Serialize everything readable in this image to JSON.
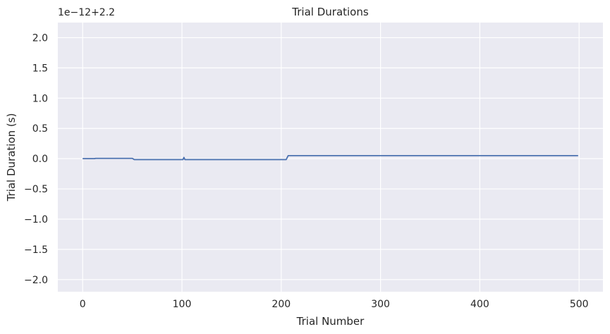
{
  "chart_data": {
    "type": "line",
    "title": "Trial Durations",
    "xlabel": "Trial Number",
    "ylabel": "Trial Duration (s)",
    "offset_label": "1e−12+2.2",
    "xlim": [
      -25,
      524
    ],
    "ylim": [
      -2.2,
      2.25
    ],
    "grid": true,
    "x_ticks": [
      0,
      100,
      200,
      300,
      400,
      500
    ],
    "y_ticks": [
      -2.0,
      -1.5,
      -1.0,
      -0.5,
      0.0,
      0.5,
      1.0,
      1.5,
      2.0
    ],
    "y_tick_labels": [
      "−2.0",
      "−1.5",
      "−1.0",
      "−0.5",
      "0.0",
      "0.5",
      "1.0",
      "1.5",
      "2.0"
    ],
    "series": [
      {
        "color": "#4c72b0",
        "x": [
          0,
          12,
          13,
          50,
          52,
          101,
          102,
          103,
          205,
          207,
          499
        ],
        "y": [
          0.0,
          0.0,
          0.005,
          0.005,
          -0.015,
          -0.015,
          0.02,
          -0.015,
          -0.015,
          0.05,
          0.05
        ]
      }
    ],
    "colors": {
      "background": "#eaeaf2",
      "grid": "#ffffff",
      "line": "#4c72b0"
    }
  }
}
